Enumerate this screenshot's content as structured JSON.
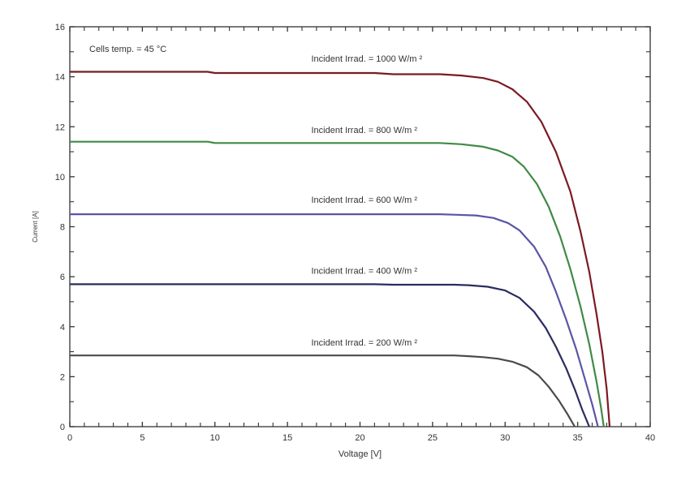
{
  "chart_data": {
    "type": "line",
    "title": "",
    "xlabel": "Voltage  [V]",
    "ylabel": "Current     [A]",
    "xlim": [
      0,
      40
    ],
    "ylim": [
      0,
      16
    ],
    "xticks": [
      0,
      5,
      10,
      15,
      20,
      25,
      30,
      35,
      40
    ],
    "yticks": [
      0,
      2,
      4,
      6,
      8,
      10,
      12,
      14,
      16
    ],
    "grid": false,
    "annotation": "Cells temp. = 45  °C",
    "series": [
      {
        "name": "Incident Irrad. = 1000 W/m ²",
        "color": "#7b1a22",
        "x": [
          0,
          9.5,
          10,
          21,
          22.3,
          25.5,
          27,
          28.5,
          29.5,
          30.5,
          31.5,
          32.5,
          33.5,
          34.5,
          35.2,
          35.8,
          36.3,
          36.7,
          37.0,
          37.2
        ],
        "y": [
          14.2,
          14.2,
          14.15,
          14.15,
          14.1,
          14.1,
          14.05,
          13.95,
          13.8,
          13.5,
          13.0,
          12.2,
          11.0,
          9.4,
          7.8,
          6.2,
          4.5,
          3.0,
          1.5,
          0
        ]
      },
      {
        "name": "Incident Irrad. = 800 W/m ²",
        "color": "#3f8a45",
        "x": [
          0,
          9.5,
          10,
          25.5,
          27,
          28.5,
          29.5,
          30.5,
          31.3,
          32.2,
          33,
          33.8,
          34.5,
          35.2,
          35.8,
          36.3,
          36.6,
          36.8
        ],
        "y": [
          11.4,
          11.4,
          11.35,
          11.35,
          11.3,
          11.2,
          11.05,
          10.8,
          10.4,
          9.7,
          8.8,
          7.6,
          6.3,
          4.8,
          3.3,
          1.8,
          0.8,
          0
        ]
      },
      {
        "name": "Incident Irrad. = 600 W/m ²",
        "color": "#5a55a6",
        "x": [
          0,
          25.5,
          26.5,
          28,
          29.2,
          30.2,
          31,
          32,
          32.8,
          33.5,
          34.2,
          34.9,
          35.5,
          36.0,
          36.4
        ],
        "y": [
          8.5,
          8.5,
          8.48,
          8.45,
          8.35,
          8.15,
          7.85,
          7.2,
          6.4,
          5.4,
          4.3,
          3.1,
          1.9,
          0.9,
          0
        ]
      },
      {
        "name": "Incident Irrad. = 400 W/m ²",
        "color": "#2a2d5e",
        "x": [
          0,
          21,
          22.3,
          26.5,
          27.5,
          28.8,
          30,
          31,
          32,
          32.8,
          33.5,
          34.2,
          34.8,
          35.3,
          35.8
        ],
        "y": [
          5.7,
          5.7,
          5.68,
          5.68,
          5.66,
          5.6,
          5.45,
          5.15,
          4.6,
          3.95,
          3.2,
          2.35,
          1.5,
          0.7,
          0
        ]
      },
      {
        "name": "Incident Irrad. = 200 W/m ²",
        "color": "#4a4a4a",
        "x": [
          0,
          26.5,
          27.5,
          28.5,
          29.5,
          30.5,
          31.5,
          32.3,
          33.0,
          33.7,
          34.3,
          34.8
        ],
        "y": [
          2.85,
          2.85,
          2.82,
          2.78,
          2.72,
          2.6,
          2.38,
          2.05,
          1.6,
          1.05,
          0.5,
          0
        ]
      }
    ],
    "labels": [
      {
        "text": "Incident Irrad. = 1000 W/m ²",
        "x": 20.0,
        "y": 14.6
      },
      {
        "text": "Incident Irrad. = 800 W/m ²",
        "x": 20.0,
        "y": 11.75
      },
      {
        "text": "Incident Irrad. = 600 W/m ²",
        "x": 20.0,
        "y": 8.95
      },
      {
        "text": "Incident Irrad. = 400 W/m ²",
        "x": 20.0,
        "y": 6.12
      },
      {
        "text": "Incident Irrad. = 200 W/m ²",
        "x": 20.0,
        "y": 3.25
      }
    ]
  }
}
